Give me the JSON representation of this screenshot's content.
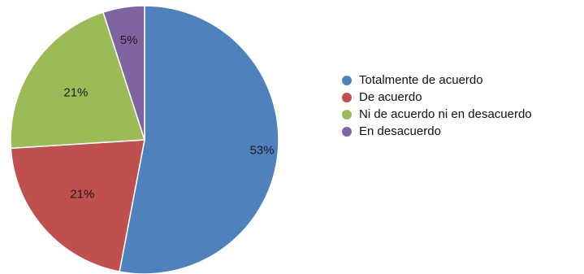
{
  "chart_data": {
    "type": "pie",
    "title": "",
    "categories": [
      "Totalmente de acuerdo",
      "De acuerdo",
      "Ni de acuerdo ni en desacuerdo",
      "En desacuerdo"
    ],
    "values": [
      53,
      21,
      21,
      5
    ],
    "labels": [
      "53%",
      "21%",
      "21%",
      "5%"
    ],
    "colors": [
      "#4f81bd",
      "#c0504d",
      "#9bbb59",
      "#8064a2"
    ],
    "legend_position": "right"
  }
}
